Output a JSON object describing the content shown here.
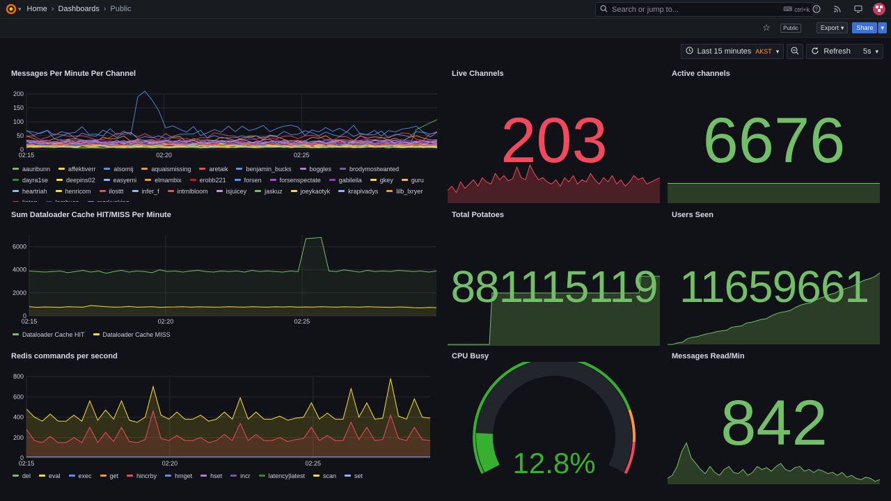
{
  "breadcrumbs": [
    "Home",
    "Dashboards",
    "Public"
  ],
  "search": {
    "placeholder": "Search or jump to...",
    "shortcut": "ctrl+k"
  },
  "subbar": {
    "public_badge": "Public",
    "export_label": "Export",
    "share_label": "Share"
  },
  "time_controls": {
    "range": "Last 15 minutes",
    "tz": "AKST",
    "refresh_label": "Refresh",
    "interval": "5s"
  },
  "panels": {
    "messages": {
      "title": "Messages Per Minute Per Channel"
    },
    "live": {
      "title": "Live Channels",
      "value": "203",
      "color": "#f2495c"
    },
    "active": {
      "title": "Active channels",
      "value": "6676",
      "color": "#73bf69"
    },
    "dataloader": {
      "title": "Sum Dataloader Cache HIT/MISS Per Minute"
    },
    "potatoes": {
      "title": "Total Potatoes",
      "value": "881115119",
      "color": "#73bf69"
    },
    "users": {
      "title": "Users Seen",
      "value": "11659661",
      "color": "#73bf69"
    },
    "redis": {
      "title": "Redis commands per second"
    },
    "cpu": {
      "title": "CPU Busy",
      "value": "12.8%",
      "fill_fraction": 0.128,
      "color": "#37b02f"
    },
    "msgread": {
      "title": "Messages Read/Min",
      "value": "842",
      "color": "#73bf69"
    }
  },
  "chart_data": [
    {
      "type": "line",
      "title": "Messages Per Minute Per Channel",
      "x_ticks": [
        "02:15",
        "02:20",
        "02:25"
      ],
      "ylim": [
        0,
        200
      ],
      "y_ticks": [
        0,
        50,
        100,
        150,
        200
      ],
      "legend": [
        "aauribunn",
        "affektiverr",
        "alsomij",
        "aquaismissing",
        "aretaik",
        "benjamin_bucks",
        "boggles",
        "brodymostwanted",
        "dayra1se",
        "deepins02",
        "easyemi",
        "elmambix",
        "erobb221",
        "forsen",
        "forsenspectate",
        "gabileila",
        "gkey",
        "guru",
        "heartriah",
        "henricom",
        "ilosttt",
        "infer_f",
        "intrnlbloom",
        "isjuicey",
        "jaskuz",
        "joeykaotyk",
        "krapivadys",
        "lilb_lxryer",
        "lipton",
        "lombuca",
        "markusking"
      ],
      "legend_colors": [
        "#73bf69",
        "#fade2a",
        "#5794f2",
        "#ff9830",
        "#f2495c",
        "#5794f2",
        "#b877d9",
        "#705da0",
        "#37872d",
        "#fade2a",
        "#8ab8ff",
        "#ff9830",
        "#c4162a",
        "#5794f2",
        "#a352cc",
        "#8f3bb8",
        "#fade2a",
        "#ffb357",
        "#8ab8ff",
        "#fade2a",
        "#f2495c",
        "#8ab8ff",
        "#f2495c",
        "#ca95e5",
        "#73bf69",
        "#fade2a",
        "#8ab8ff",
        "#ff9830",
        "#e02f44",
        "#1f60c4",
        "#b877d9"
      ]
    },
    {
      "type": "line",
      "title": "Sum Dataloader Cache HIT/MISS Per Minute",
      "x_ticks": [
        "02:15",
        "02:20",
        "02:25"
      ],
      "y_ticks": [
        0,
        2000,
        4000,
        6000
      ],
      "ylim": [
        0,
        7000
      ],
      "series": [
        {
          "name": "Dataloader Cache HIT",
          "color": "#73bf69",
          "values": [
            3900,
            3850,
            3800,
            3850,
            3900,
            3750,
            3850,
            3950,
            3800,
            3900,
            3700,
            3850,
            3950,
            3800,
            3900,
            3850,
            3750,
            4000,
            3850,
            3900,
            3800,
            3900,
            3950,
            3850,
            3800,
            3900,
            3850,
            3900,
            3800,
            3950,
            3850,
            3900,
            3850,
            3800,
            3900,
            3850,
            6700,
            6750,
            6800,
            3900,
            3850,
            4000,
            3900,
            3800,
            3950,
            3850,
            3900,
            3850,
            3950,
            3900,
            3850,
            3900,
            3800,
            3900
          ]
        },
        {
          "name": "Dataloader Cache MISS",
          "color": "#fade2a",
          "values": [
            800,
            750,
            780,
            760,
            740,
            800,
            780,
            760,
            900,
            850,
            800,
            760,
            780,
            820,
            760,
            780,
            800,
            750,
            770,
            780,
            800,
            760,
            790,
            780,
            760,
            770,
            800,
            780,
            760,
            800,
            780,
            760,
            790,
            780,
            800,
            760,
            780,
            770,
            800,
            780,
            760,
            790,
            780,
            760,
            800,
            780,
            760,
            740,
            780,
            760,
            720,
            700,
            740,
            720
          ]
        }
      ]
    },
    {
      "type": "area",
      "title": "Redis commands per second",
      "x_ticks": [
        "02:15",
        "02:20",
        "02:25"
      ],
      "y_ticks": [
        0,
        200,
        400,
        600,
        800
      ],
      "ylim": [
        0,
        800
      ],
      "legend": [
        "del",
        "eval",
        "exec",
        "get",
        "hincrby",
        "hmget",
        "hset",
        "incr",
        "latency|latest",
        "scan",
        "set"
      ],
      "legend_colors": [
        "#73bf69",
        "#fade2a",
        "#5794f2",
        "#ff9830",
        "#f2495c",
        "#5794f2",
        "#b877d9",
        "#705da0",
        "#37872d",
        "#fade2a",
        "#8ab8ff"
      ],
      "series": [
        {
          "name": "eval",
          "color": "#fade2a",
          "values": [
            480,
            400,
            360,
            430,
            360,
            360,
            420,
            360,
            560,
            370,
            470,
            380,
            560,
            370,
            350,
            400,
            700,
            420,
            380,
            450,
            380,
            380,
            420,
            360,
            380,
            450,
            380,
            590,
            380,
            450,
            380,
            380,
            410,
            370,
            390,
            400,
            540,
            380,
            440,
            380,
            380,
            680,
            400,
            540,
            380,
            390,
            780,
            410,
            380,
            580,
            400,
            390
          ]
        },
        {
          "name": "hincrby",
          "color": "#f2495c",
          "values": [
            280,
            170,
            150,
            210,
            150,
            150,
            200,
            150,
            300,
            150,
            250,
            160,
            300,
            160,
            150,
            180,
            460,
            190,
            170,
            220,
            170,
            170,
            200,
            150,
            170,
            230,
            170,
            340,
            170,
            230,
            170,
            170,
            200,
            160,
            180,
            190,
            300,
            170,
            220,
            170,
            170,
            350,
            180,
            300,
            170,
            180,
            420,
            190,
            170,
            300,
            180,
            170
          ]
        },
        {
          "name": "exec",
          "color": "#5794f2",
          "values": [
            10,
            10,
            10,
            10,
            10,
            10,
            10,
            10,
            10,
            10,
            10,
            10,
            10,
            10,
            10,
            10,
            10,
            10,
            10,
            10,
            10,
            10,
            10,
            10,
            10,
            10,
            10,
            10,
            10,
            10,
            10,
            10,
            10,
            10,
            10,
            10,
            10,
            10,
            10,
            10,
            10,
            10,
            10,
            10,
            10,
            10,
            10,
            10,
            10,
            10,
            10,
            10
          ]
        }
      ]
    },
    {
      "type": "gauge",
      "title": "CPU Busy",
      "value": 12.8,
      "unit": "%",
      "range": [
        0,
        100
      ],
      "thresholds": [
        {
          "value": 0,
          "color": "#37b02f"
        },
        {
          "value": 80,
          "color": "#ff9830"
        },
        {
          "value": 90,
          "color": "#f2495c"
        }
      ]
    }
  ],
  "sparks": {
    "live": [
      120,
      140,
      110,
      160,
      130,
      150,
      170,
      140,
      180,
      160,
      150,
      200,
      170,
      190,
      165,
      175,
      230,
      180,
      170,
      240,
      200,
      170,
      180,
      160,
      150,
      170,
      140,
      180,
      160,
      190,
      150,
      170,
      160,
      200,
      170,
      150,
      180,
      160,
      190,
      150,
      170,
      140,
      160,
      190,
      170,
      180,
      150,
      160,
      170,
      180
    ],
    "potatoes": [
      0,
      0,
      0,
      0,
      0,
      0,
      0,
      0,
      0,
      0,
      0,
      0,
      0,
      0,
      0,
      0,
      0,
      0,
      0,
      0,
      0,
      0,
      0,
      0,
      0,
      0,
      0,
      0,
      0,
      0,
      0,
      0,
      0,
      0,
      0,
      0,
      0,
      0,
      0,
      0,
      0,
      0,
      0,
      0,
      0,
      0,
      0,
      0,
      0,
      0,
      0,
      0,
      0,
      0,
      0,
      0,
      0,
      0,
      0,
      0,
      0
    ],
    "users": [
      0,
      0,
      2,
      3,
      8,
      10,
      11,
      13,
      15,
      16,
      18,
      19,
      20,
      24,
      25,
      26,
      30,
      31,
      33,
      35,
      36,
      40,
      43,
      45,
      46,
      48,
      52,
      55,
      57,
      58,
      62,
      65,
      67,
      70,
      72,
      76,
      78,
      80,
      83,
      87,
      90,
      92,
      95,
      100
    ],
    "msgread": [
      10,
      15,
      30,
      55,
      70,
      45,
      35,
      25,
      18,
      30,
      20,
      15,
      25,
      30,
      20,
      18,
      25,
      15,
      20,
      30,
      25,
      28,
      22,
      30,
      35,
      25,
      22,
      28,
      30,
      22,
      25,
      20,
      25,
      22,
      18,
      20,
      15,
      20,
      12,
      15,
      10,
      8,
      12,
      10,
      5,
      8
    ]
  }
}
